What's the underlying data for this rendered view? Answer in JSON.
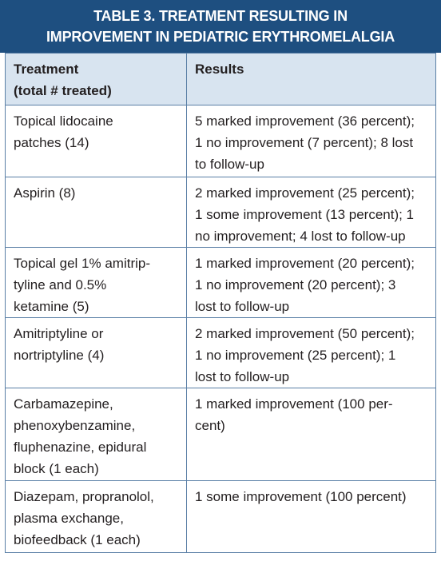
{
  "header": {
    "title": [
      "TABLE 3. TREATMENT RESULTING IN",
      "IMPROVEMENT IN PEDIATRIC ERYTHROMELALGIA"
    ]
  },
  "table": {
    "columns": [
      [
        "Treatment",
        "(total # treated)"
      ],
      [
        "Results"
      ]
    ],
    "rows": [
      [
        [
          "Topical lidocaine",
          "patches (14)"
        ],
        [
          "5 marked improvement (36 percent);",
          "1 no improvement (7 percent); 8 lost",
          "to follow-up"
        ]
      ],
      [
        [
          "Aspirin (8)"
        ],
        [
          "2 marked improvement (25 percent);",
          "1 some improvement (13 percent); 1",
          "no improvement; 4 lost to follow-up"
        ]
      ],
      [
        [
          "Topical gel 1% amitrip-",
          "tyline and 0.5%",
          "ketamine (5)"
        ],
        [
          "1 marked improvement (20 percent);",
          "1 no improvement (20 percent); 3",
          "lost to follow-up"
        ]
      ],
      [
        [
          "Amitriptyline or",
          "nortriptyline (4)"
        ],
        [
          "2 marked improvement (50 percent);",
          "1 no improvement (25 percent); 1",
          "lost to follow-up"
        ]
      ],
      [
        [
          "Carbamazepine,",
          "phenoxybenzamine,",
          "fluphenazine, epidural",
          "block (1 each)"
        ],
        [
          "1 marked improvement (100 per-",
          "cent)"
        ]
      ],
      [
        [
          "Diazepam, propranolol,",
          "plasma exchange,",
          "biofeedback (1 each)"
        ],
        [
          "1 some improvement (100 percent)"
        ]
      ]
    ]
  }
}
